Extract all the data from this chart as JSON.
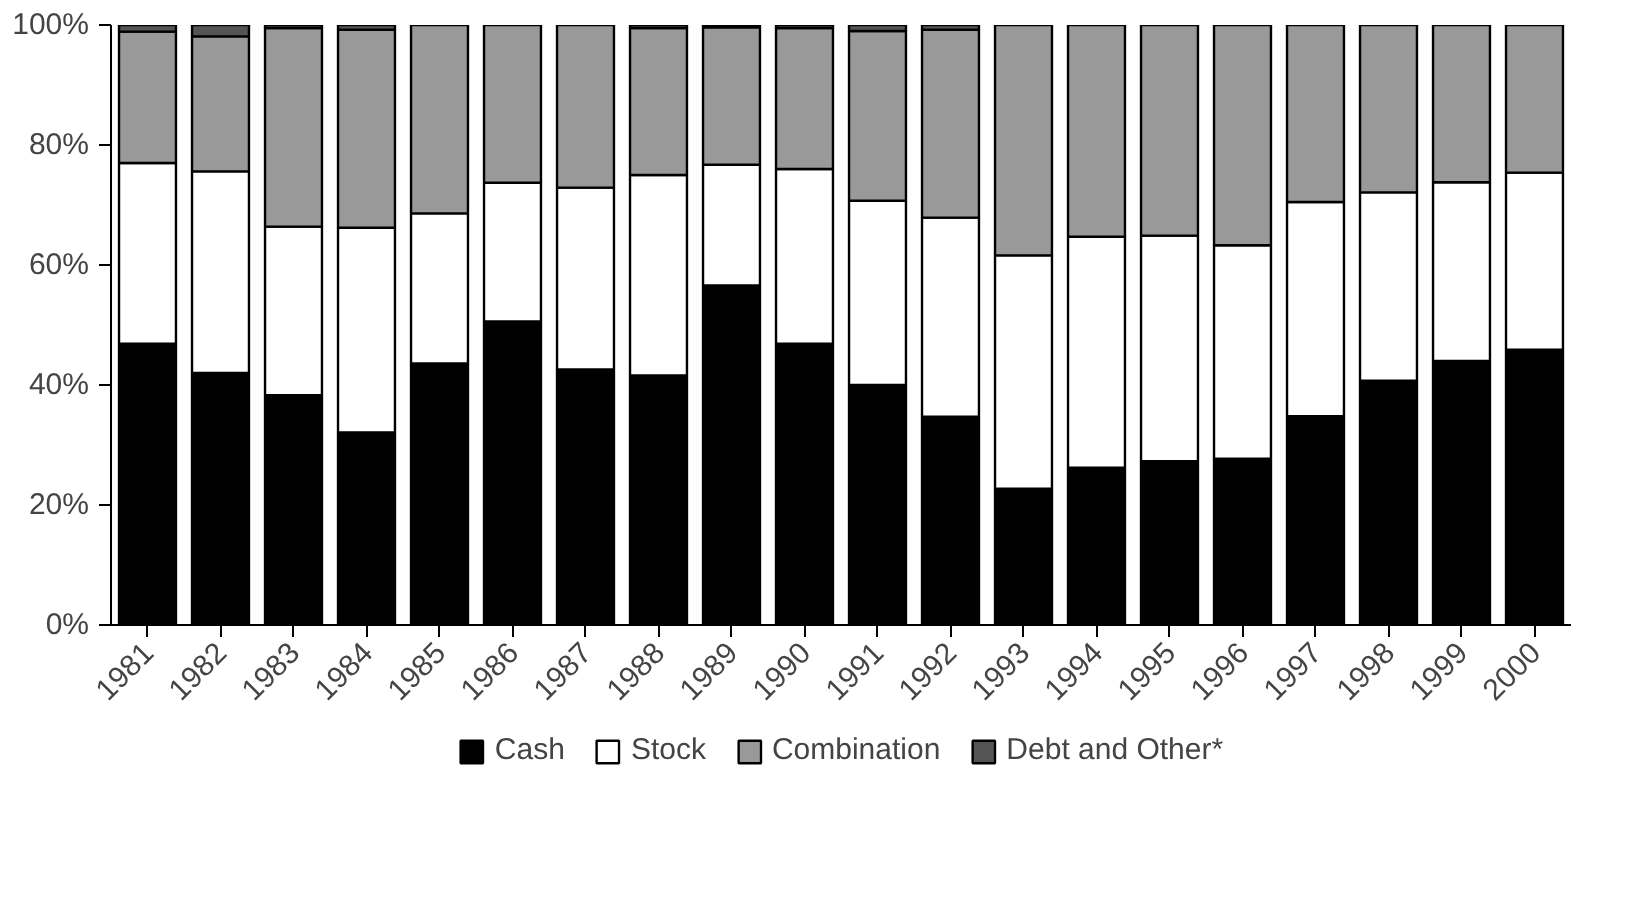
{
  "chart_data": {
    "type": "bar",
    "stacked": true,
    "categories": [
      "1981",
      "1982",
      "1983",
      "1984",
      "1985",
      "1986",
      "1987",
      "1988",
      "1989",
      "1990",
      "1991",
      "1992",
      "1993",
      "1994",
      "1995",
      "1996",
      "1997",
      "1998",
      "1999",
      "2000"
    ],
    "series": [
      {
        "name": "Cash",
        "color": "#000000",
        "values": [
          46.9,
          42.0,
          38.3,
          32.1,
          43.6,
          50.6,
          42.6,
          41.6,
          56.6,
          46.9,
          40.0,
          34.7,
          22.7,
          26.2,
          27.3,
          27.7,
          34.8,
          40.7,
          44.0,
          45.9
        ]
      },
      {
        "name": "Stock",
        "color": "#ffffff",
        "values": [
          30.1,
          33.6,
          28.1,
          34.1,
          25.0,
          23.1,
          30.3,
          33.4,
          20.1,
          29.1,
          30.7,
          33.2,
          38.9,
          38.5,
          37.6,
          35.6,
          35.7,
          31.4,
          29.8,
          29.5
        ]
      },
      {
        "name": "Combination",
        "color": "#999999",
        "values": [
          21.9,
          22.5,
          33.1,
          33.0,
          31.4,
          26.3,
          27.1,
          24.5,
          22.9,
          23.5,
          28.3,
          31.3,
          38.4,
          35.3,
          35.1,
          36.7,
          29.5,
          27.9,
          26.2,
          24.6
        ]
      },
      {
        "name": "Debt and Other*",
        "color": "#555555",
        "values": [
          1.1,
          1.9,
          0.5,
          0.8,
          null,
          null,
          null,
          0.5,
          0.4,
          0.5,
          1.0,
          0.8,
          null,
          null,
          null,
          null,
          null,
          null,
          null,
          null
        ]
      }
    ],
    "ylim": [
      0,
      100
    ],
    "yticks": [
      {
        "value": 0,
        "label": "0%"
      },
      {
        "value": 20,
        "label": "20%"
      },
      {
        "value": 40,
        "label": "40%"
      },
      {
        "value": 60,
        "label": "60%"
      },
      {
        "value": 80,
        "label": "80%"
      },
      {
        "value": 100,
        "label": "100%"
      }
    ],
    "grid": false,
    "legend": "bottom"
  }
}
